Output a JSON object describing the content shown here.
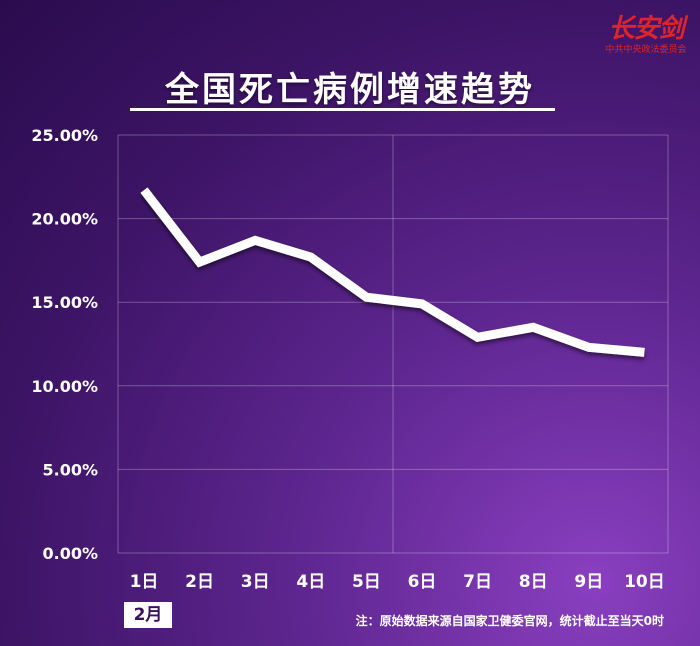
{
  "logo": {
    "main": "长安剑",
    "sub": "中共中央政法委员会"
  },
  "chart_data": {
    "type": "line",
    "title": "全国死亡病例增速趋势",
    "categories": [
      "1日",
      "2日",
      "3日",
      "4日",
      "5日",
      "6日",
      "7日",
      "8日",
      "9日",
      "10日"
    ],
    "series": [
      {
        "values": [
          21.7,
          17.4,
          18.7,
          17.7,
          15.3,
          14.9,
          12.9,
          13.5,
          12.3,
          12.0
        ]
      }
    ],
    "yticks": [
      "0.00%",
      "5.00%",
      "10.00%",
      "15.00%",
      "20.00%",
      "25.00%"
    ],
    "ylim": [
      0,
      25
    ],
    "grid": true,
    "line_color": "#ffffff",
    "month_label": "2月",
    "note": "注：原始数据来源自国家卫健委官网，统计截止至当天0时"
  }
}
